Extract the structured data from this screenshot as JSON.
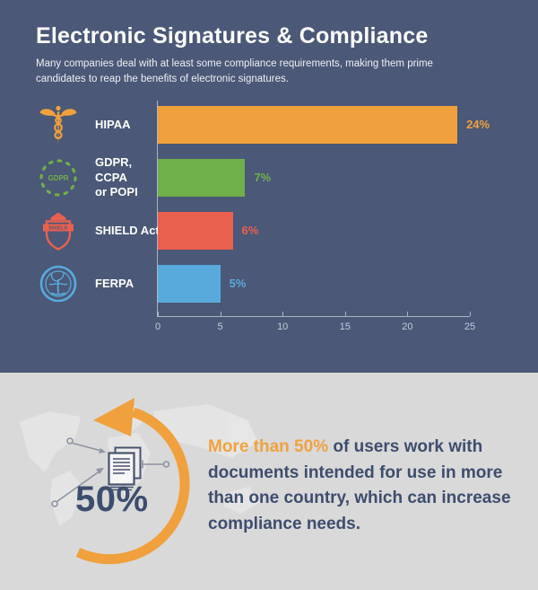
{
  "colors": {
    "background_dark": "#4b5877",
    "background_light": "#d9d9d9",
    "orange": "#f0a03c",
    "green": "#6fb04a",
    "red": "#e9604f",
    "blue": "#58aadd",
    "navy_text": "#3e4d6e",
    "axis": "#c6ccd8"
  },
  "header": {
    "title": "Electronic Signatures & Compliance",
    "subtitle": "Many companies deal with at least some compliance requirements, making them prime candidates to reap the benefits of electronic signatures."
  },
  "chart_data": {
    "type": "bar",
    "orientation": "horizontal",
    "categories": [
      "HIPAA",
      "GDPR, CCPA or POPI",
      "SHIELD Act",
      "FERPA"
    ],
    "values": [
      24,
      7,
      6,
      5
    ],
    "value_labels": [
      "24%",
      "7%",
      "6%",
      "5%"
    ],
    "bar_colors": [
      "#f0a03c",
      "#6fb04a",
      "#e9604f",
      "#58aadd"
    ],
    "row_label_lines": [
      [
        "HIPAA"
      ],
      [
        "GDPR, CCPA",
        "or POPI"
      ],
      [
        "SHIELD Act"
      ],
      [
        "FERPA"
      ]
    ],
    "row_icons": [
      "caduceus-icon",
      "gdpr-stars-icon",
      "shield-icon",
      "ferpa-seal-icon"
    ],
    "x_ticks": [
      0,
      5,
      10,
      15,
      20,
      25
    ],
    "xlim": [
      0,
      25
    ],
    "grid": false,
    "legend": false
  },
  "icon_texts": {
    "gdpr": "GDPR",
    "shield": "SHIELD"
  },
  "footer": {
    "stat": "50%",
    "highlight": "More than 50%",
    "rest": " of users work with documents intended for use in more than one country, which can increase compliance needs."
  }
}
